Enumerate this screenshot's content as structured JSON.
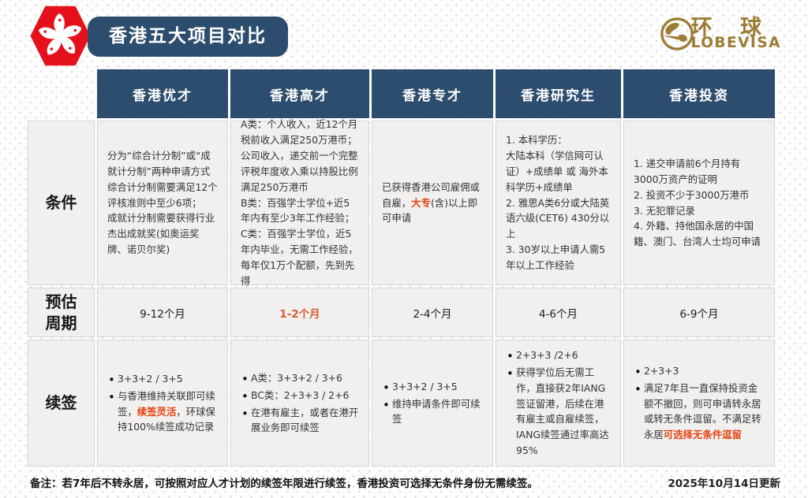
{
  "header": {
    "title": "香港五大项目对比",
    "logo_cn": "环 球",
    "logo_en": "LOBEVISA"
  },
  "colors": {
    "header_blue": "#2d4d6e",
    "brand_red": "#e5101b",
    "brand_gold": "#9b7c33",
    "accent_orange": "#e5430f",
    "cell_bg": "#f2f0ee"
  },
  "table": {
    "column_headers": [
      "香港优才",
      "香港高才",
      "香港专才",
      "香港研究生",
      "香港投资"
    ],
    "row_labels": [
      "条件",
      "预估\n周期",
      "续签"
    ],
    "condition_row": [
      {
        "paras": [
          [
            {
              "t": "分为“综合计分制”或“成就计分制”两种申请方式"
            }
          ],
          [
            {
              "t": "综合计分制需要满足12个评核准则中至少6项；"
            }
          ],
          [
            {
              "t": "成就计分制需要获得行业杰出成就奖(如奥运奖牌、诺贝尔奖)"
            }
          ]
        ]
      },
      {
        "paras": [
          [
            {
              "t": "A类：个人收入，近12个月税前收入满足250万港币；公司收入，递交前一个完整评税年度收入乘以持股比例满足250万港币"
            }
          ],
          [
            {
              "t": "B类：百强学士学位+近5年内有至少3年工作经验；"
            }
          ],
          [
            {
              "t": "C类：百强学士学位，近5年内毕业，无需工作经验，每年仅1万个配额，先到先得"
            }
          ]
        ]
      },
      {
        "paras": [
          [
            {
              "t": "已获得香港公司雇佣或自雇，"
            },
            {
              "t": "大专",
              "hl": true
            },
            {
              "t": "(含)以上即可申请"
            }
          ]
        ]
      },
      {
        "paras": [
          [
            {
              "t": "1. 本科学历："
            }
          ],
          [
            {
              "t": "大陆本科（学信网可认证）+成绩单 或 海外本科学历+成绩单"
            }
          ],
          [
            {
              "t": "2. 雅思A类6分或大陆英语六级(CET6) 430分以上"
            }
          ],
          [
            {
              "t": "3. 30岁以上申请人需5年以上工作经验"
            }
          ]
        ]
      },
      {
        "paras": [
          [
            {
              "t": "1. 递交申请前6个月持有3000万资产的证明"
            }
          ],
          [
            {
              "t": "2. 投资不少于3000万港币"
            }
          ],
          [
            {
              "t": "3. 无犯罪记录"
            }
          ],
          [
            {
              "t": "4. 外籍、持他国永居的中国籍、澳门、台湾人士均可申请"
            }
          ]
        ]
      }
    ],
    "period_row": [
      {
        "text": "9-12个月"
      },
      {
        "text": "1-2个月",
        "hl": true
      },
      {
        "text": "2-4个月"
      },
      {
        "text": "4-6个月"
      },
      {
        "text": "6-9个月"
      }
    ],
    "renewal_row": [
      {
        "bullets": [
          [
            {
              "t": "3+3+2 / 3+5"
            }
          ],
          [
            {
              "t": "与香港维持关联即可续签，"
            },
            {
              "t": "续签灵活",
              "hl": true
            },
            {
              "t": "，环球保持100%续签成功记录"
            }
          ]
        ]
      },
      {
        "bullets": [
          [
            {
              "t": "A类：3+3+2 / 3+6"
            }
          ],
          [
            {
              "t": "BC类：2+3+3 / 2+6"
            }
          ],
          [
            {
              "t": "在港有雇主，或者在港开展业务即可续签"
            }
          ]
        ]
      },
      {
        "bullets": [
          [
            {
              "t": "3+3+2 / 3+5"
            }
          ],
          [
            {
              "t": "维持申请条件即可续签"
            }
          ]
        ]
      },
      {
        "bullets": [
          [
            {
              "t": "2+3+3 /2+6"
            }
          ],
          [
            {
              "t": "获得学位后无需工作，直接获2年IANG签证留港，后续在港有雇主或自雇续签，IANG续签通过率高达95%"
            }
          ]
        ]
      },
      {
        "bullets": [
          [
            {
              "t": "2+3+3"
            }
          ],
          [
            {
              "t": "满足7年且一直保持投资金额不撤回，则可申请转永居或转无条件逗留。不满足转永居"
            },
            {
              "t": "可选择无条件逗留",
              "hl": true
            }
          ]
        ]
      }
    ]
  },
  "footer": {
    "note": "备注：若7年后不转永居，可按照对应人才计划的续签年限进行续签，香港投资可选择无条件身份无需续签。",
    "date": "2025年10月14日更新"
  }
}
